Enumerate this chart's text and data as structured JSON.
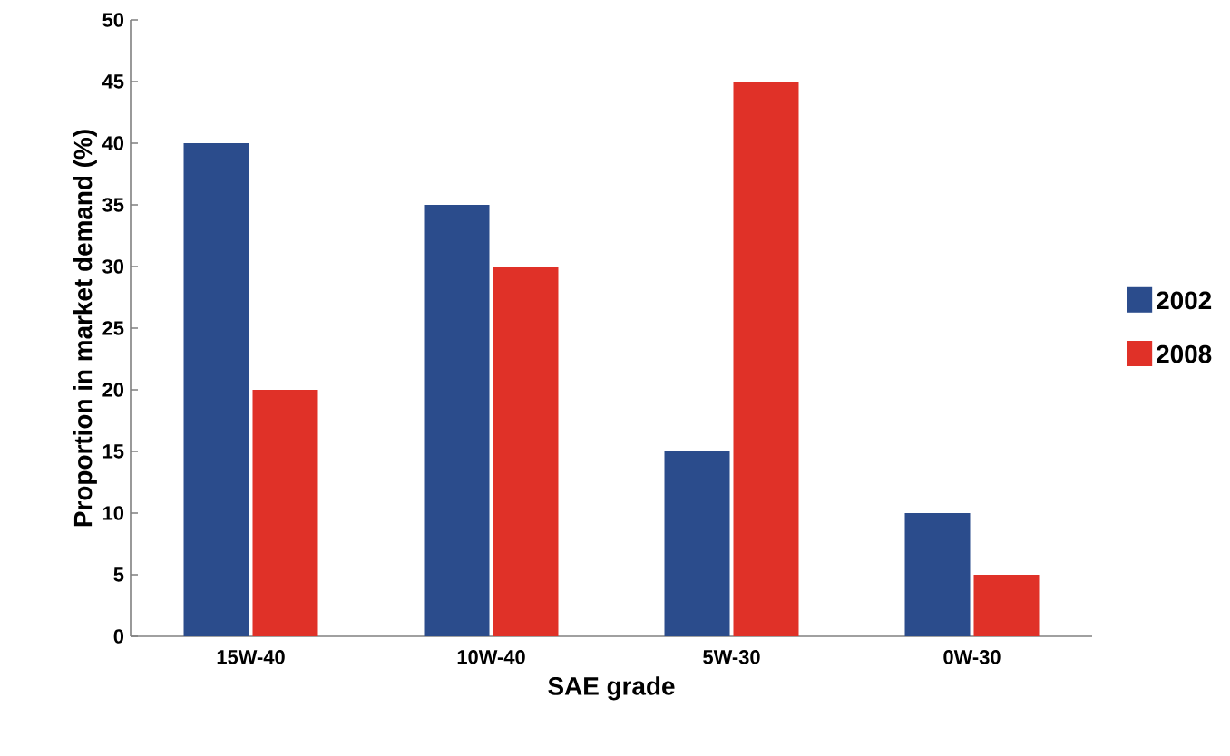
{
  "chart_data": {
    "type": "bar",
    "xlabel": "SAE grade",
    "ylabel": "Proportion in market demand (%)",
    "categories": [
      "15W-40",
      "10W-40",
      "5W-30",
      "0W-30"
    ],
    "series": [
      {
        "name": "2002",
        "color": "#2b4c8c",
        "values": [
          40,
          35,
          15,
          10
        ]
      },
      {
        "name": "2008",
        "color": "#e03128",
        "values": [
          20,
          30,
          45,
          5
        ]
      }
    ],
    "ylim": [
      0,
      50
    ],
    "yticks": [
      0,
      5,
      10,
      15,
      20,
      25,
      30,
      35,
      40,
      45,
      50
    ],
    "grid": false,
    "legend": "right"
  }
}
